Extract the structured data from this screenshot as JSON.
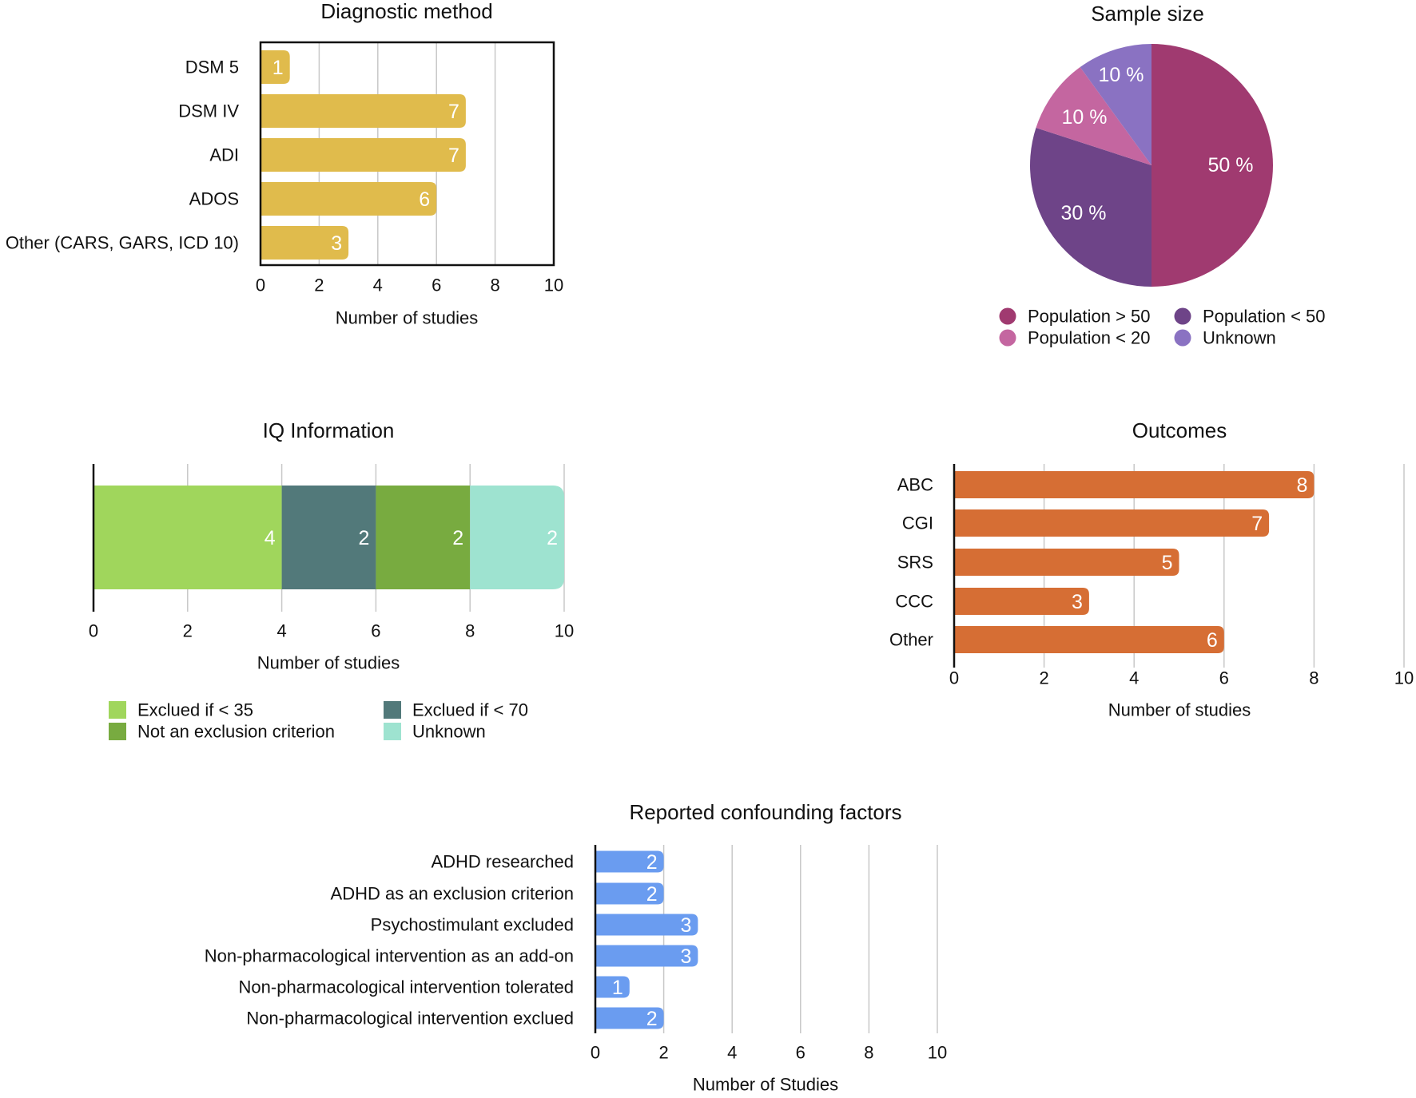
{
  "chart_data": [
    {
      "id": "diag",
      "type": "bar",
      "orientation": "horizontal",
      "title": "Diagnostic method",
      "categories": [
        "DSM 5",
        "DSM IV",
        "ADI",
        "ADOS",
        "Other (CARS, GARS, ICD 10)"
      ],
      "values": [
        1,
        7,
        7,
        6,
        3
      ],
      "xlabel": "Number of studies",
      "xlim": [
        0,
        10
      ],
      "ticks": [
        "0",
        "2",
        "4",
        "6",
        "8",
        "10"
      ],
      "color": "#e0bb4c",
      "grid": true
    },
    {
      "id": "sample",
      "type": "pie",
      "title": "Sample size",
      "slices": [
        {
          "label": "Population > 50",
          "value": 50,
          "text": "50 %",
          "color": "#a03a70"
        },
        {
          "label": "Population < 50",
          "value": 30,
          "text": "30 %",
          "color": "#6e4488"
        },
        {
          "label": "Population < 20",
          "value": 10,
          "text": "10 %",
          "color": "#c466a0"
        },
        {
          "label": "Unknown",
          "value": 10,
          "text": "10 %",
          "color": "#8a72c2"
        }
      ],
      "legend": "bottom"
    },
    {
      "id": "iq",
      "type": "bar",
      "orientation": "horizontal-stacked",
      "title": "IQ Information",
      "series": [
        {
          "name": "Exclued if < 35",
          "value": 4,
          "color": "#a0d65c"
        },
        {
          "name": "Exclued if < 70",
          "value": 2,
          "color": "#52797a"
        },
        {
          "name": "Not an exclusion criterion",
          "value": 2,
          "color": "#78ab40"
        },
        {
          "name": "Unknown",
          "value": 2,
          "color": "#9ee3d0"
        }
      ],
      "xlabel": "Number of studies",
      "xlim": [
        0,
        10
      ],
      "ticks": [
        "0",
        "2",
        "4",
        "6",
        "8",
        "10"
      ],
      "legend": "bottom",
      "grid": true
    },
    {
      "id": "outcomes",
      "type": "bar",
      "orientation": "horizontal",
      "title": "Outcomes",
      "categories": [
        "ABC",
        "CGI",
        "SRS",
        "CCC",
        "Other"
      ],
      "values": [
        8,
        7,
        5,
        3,
        6
      ],
      "xlabel": "Number of studies",
      "xlim": [
        0,
        10
      ],
      "ticks": [
        "0",
        "2",
        "4",
        "6",
        "8",
        "10"
      ],
      "color": "#d66e34",
      "grid": true
    },
    {
      "id": "conf",
      "type": "bar",
      "orientation": "horizontal",
      "title": "Reported confounding factors",
      "categories": [
        "ADHD researched",
        "ADHD as an exclusion criterion",
        "Psychostimulant excluded",
        "Non-pharmacological intervention as an add-on",
        "Non-pharmacological intervention tolerated",
        "Non-pharmacological intervention exclued"
      ],
      "values": [
        2,
        2,
        3,
        3,
        1,
        2
      ],
      "xlabel": "Number of Studies",
      "xlim": [
        0,
        10
      ],
      "ticks": [
        "0",
        "2",
        "4",
        "6",
        "8",
        "10"
      ],
      "color": "#6a9cf0",
      "grid": true
    }
  ]
}
